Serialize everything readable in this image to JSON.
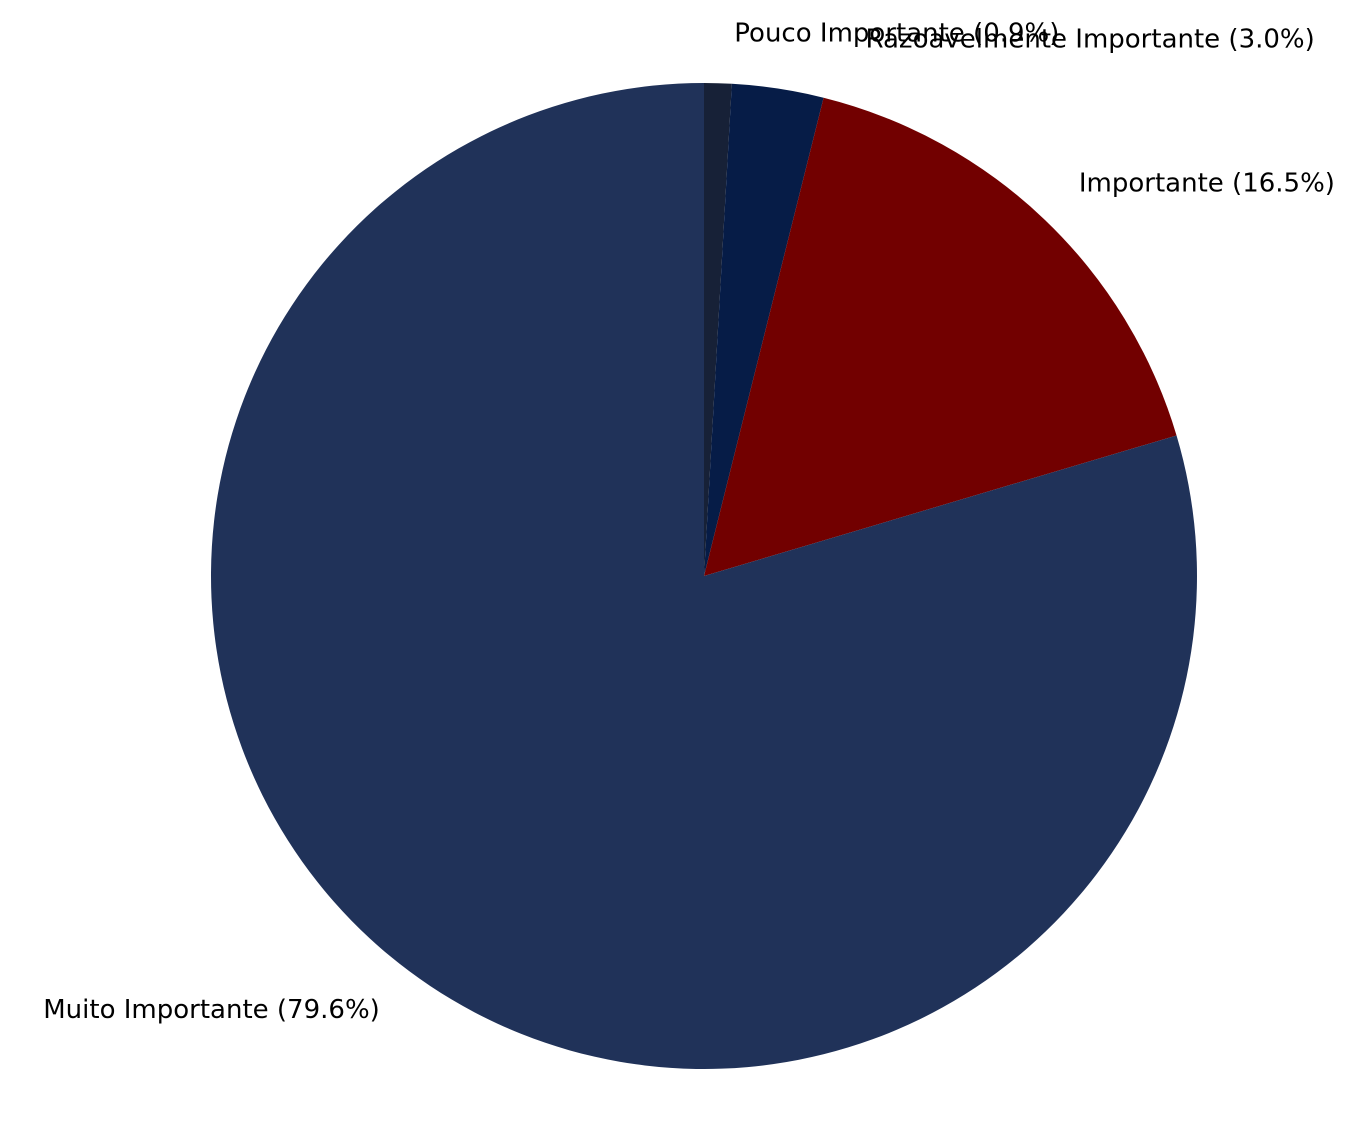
{
  "chart_data": {
    "type": "pie",
    "start": "top",
    "direction": "clockwise",
    "slices": [
      {
        "label": "Pouco Importante (0.9%)",
        "value": 0.9,
        "color": "#172137"
      },
      {
        "label": "Razoavelmente Importante (3.0%)",
        "value": 3.0,
        "color": "#061c47"
      },
      {
        "label": "Importante (16.5%)",
        "value": 16.5,
        "color": "#720000"
      },
      {
        "label": "Muito Importante (79.6%)",
        "value": 79.6,
        "color": "#203259"
      }
    ]
  }
}
